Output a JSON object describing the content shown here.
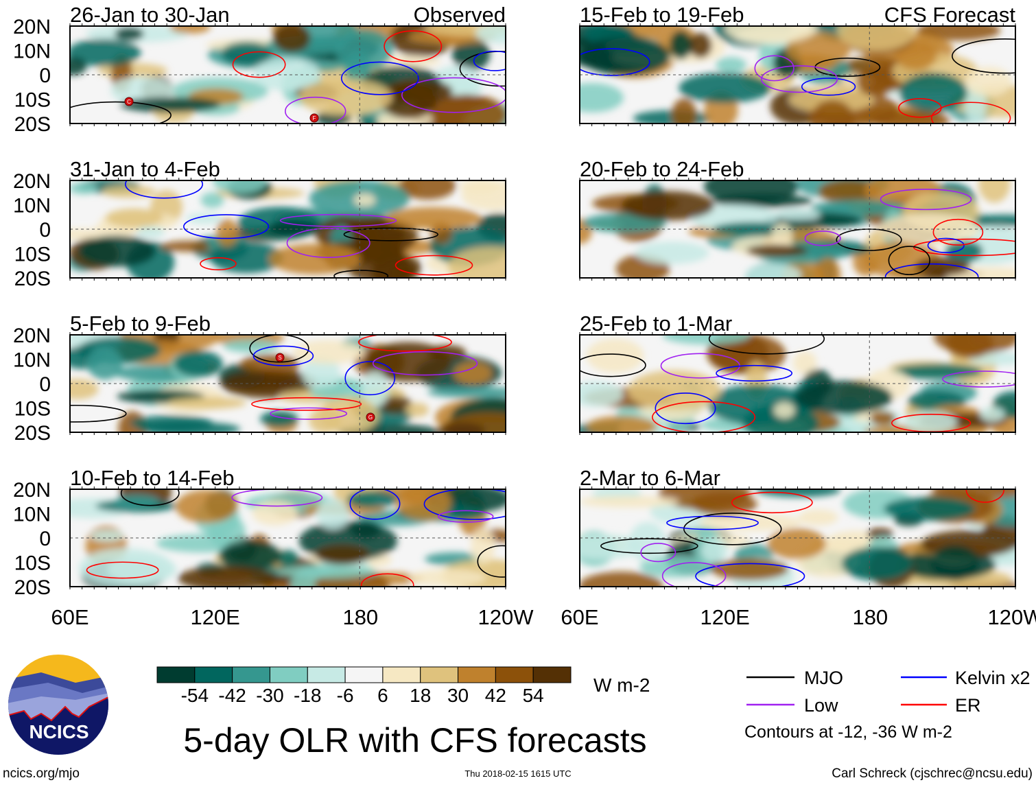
{
  "panels": [
    {
      "title": "26-Jan to 30-Jan",
      "label": "Observed",
      "markers": [
        "C",
        "F"
      ]
    },
    {
      "title": "15-Feb to 19-Feb",
      "label": "CFS Forecast",
      "markers": []
    },
    {
      "title": "31-Jan to 4-Feb",
      "label": "",
      "markers": []
    },
    {
      "title": "20-Feb to 24-Feb",
      "label": "",
      "markers": []
    },
    {
      "title": "5-Feb to 9-Feb",
      "label": "",
      "markers": [
        "S",
        "G"
      ]
    },
    {
      "title": "25-Feb to 1-Mar",
      "label": "",
      "markers": []
    },
    {
      "title": "10-Feb to 14-Feb",
      "label": "",
      "markers": []
    },
    {
      "title": "2-Mar to 6-Mar",
      "label": "",
      "markers": []
    }
  ],
  "lat_labels": [
    "20N",
    "10N",
    "0",
    "10S",
    "20S"
  ],
  "lon_labels": [
    "60E",
    "120E",
    "180",
    "120W"
  ],
  "colorbar": {
    "colors": [
      "#003c30",
      "#01665e",
      "#35978f",
      "#80cdc1",
      "#c7eae5",
      "#f5f5f5",
      "#f6e8c3",
      "#dfc27d",
      "#bf812d",
      "#8c510a",
      "#543005"
    ],
    "labels": [
      "-54",
      "-42",
      "-30",
      "-18",
      "-6",
      "6",
      "18",
      "30",
      "42",
      "54"
    ],
    "units": "W m-2"
  },
  "title": "5-day OLR with CFS forecasts",
  "legend": {
    "items": [
      {
        "label": "MJO",
        "color": "#000000"
      },
      {
        "label": "Kelvin x2",
        "color": "#0000ff"
      },
      {
        "label": "Low",
        "color": "#a020f0"
      },
      {
        "label": "ER",
        "color": "#ff0000"
      }
    ],
    "note": "Contours at -12, -36 W m-2"
  },
  "logo": {
    "text": "NCICS"
  },
  "footer": {
    "url": "ncics.org/mjo",
    "timestamp": "Thu 2018-02-15 1615 UTC",
    "credit": "Carl Schreck (cjschrec@ncsu.edu)"
  }
}
